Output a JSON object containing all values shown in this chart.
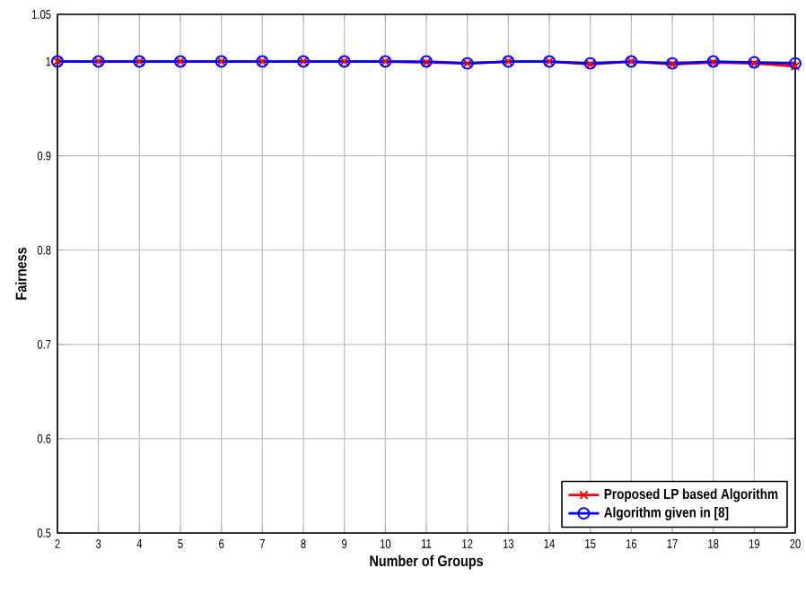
{
  "chart_data": {
    "type": "line",
    "xlabel": "Number of Groups",
    "ylabel": "Fairness",
    "x": [
      2,
      3,
      4,
      5,
      6,
      7,
      8,
      9,
      10,
      11,
      12,
      13,
      14,
      15,
      16,
      17,
      18,
      19,
      20
    ],
    "series": [
      {
        "name": "Proposed LP based Algorithm",
        "color": "#ff0000",
        "marker": "cross",
        "values": [
          1,
          1,
          1,
          1,
          1,
          1,
          1,
          1,
          1,
          0.999,
          0.998,
          1,
          1,
          0.997,
          1,
          0.997,
          0.999,
          0.998,
          0.995
        ]
      },
      {
        "name": "Algorithm given in [8]",
        "color": "#0000ff",
        "marker": "circle",
        "values": [
          1,
          1,
          1,
          1,
          1,
          1,
          1,
          1,
          1,
          1,
          0.998,
          1,
          1,
          0.998,
          1,
          0.998,
          1,
          0.999,
          0.998
        ]
      }
    ],
    "xlim": [
      2,
      20
    ],
    "xticks": [
      2,
      3,
      4,
      5,
      6,
      7,
      8,
      9,
      10,
      11,
      12,
      13,
      14,
      15,
      16,
      17,
      18,
      19,
      20
    ],
    "ylim": [
      0.5,
      1.05
    ],
    "yticks": [
      0.5,
      0.6,
      0.7,
      0.8,
      0.9,
      1,
      1.05
    ],
    "grid": true,
    "legend": "bottom right",
    "line_style": "solid"
  }
}
